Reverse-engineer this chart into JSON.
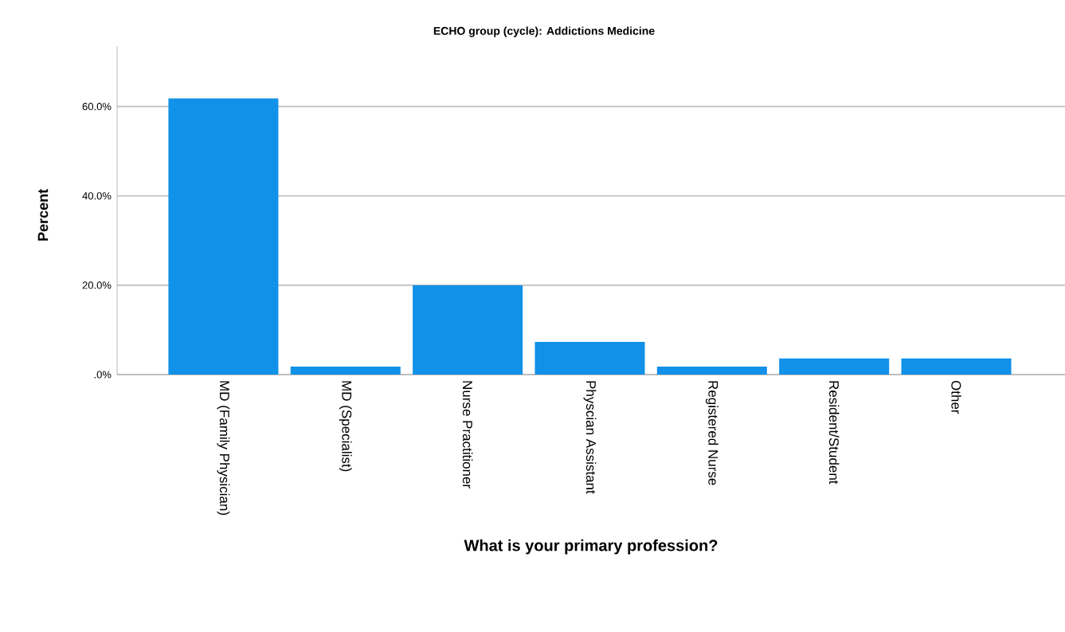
{
  "chart_data": {
    "type": "bar",
    "title": "ECHO group (cycle): Addictions Medicine",
    "xlabel": "What is your primary profession?",
    "ylabel": "Percent",
    "categories": [
      "MD (Family Physician)",
      "MD (Specialist)",
      "Nurse Practitioner",
      "Physcian Assistant",
      "Registered Nurse",
      "Resident/Student",
      "Other"
    ],
    "values": [
      61.8,
      1.8,
      20.0,
      7.3,
      1.8,
      3.6,
      3.6
    ],
    "color": "#1191e8",
    "ylim": [
      0,
      73.5
    ],
    "yticks": [
      {
        "value": 0,
        "label": ".0%"
      },
      {
        "value": 20,
        "label": "20.0%"
      },
      {
        "value": 40,
        "label": "40.0%"
      },
      {
        "value": 60,
        "label": "60.0%"
      }
    ],
    "grid": "y"
  }
}
